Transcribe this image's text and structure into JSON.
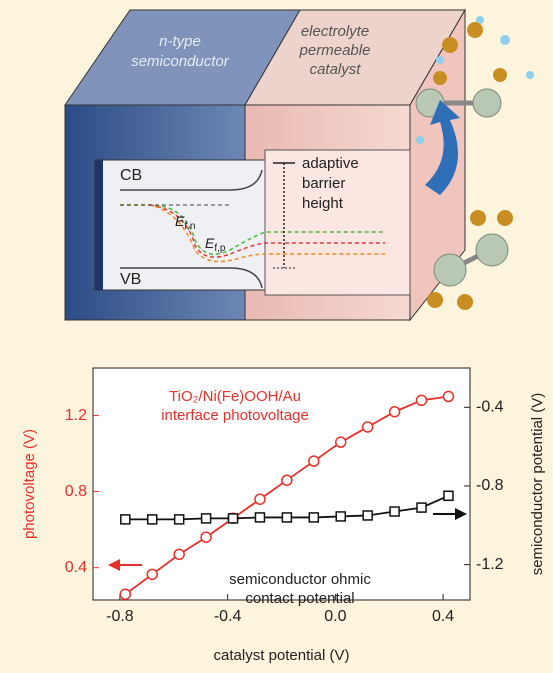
{
  "diagram": {
    "left_label": [
      "n-type",
      "semiconductor"
    ],
    "right_label": [
      "electrolyte",
      "permeable",
      "catalyst"
    ],
    "cb": "CB",
    "vb": "VB",
    "efn": {
      "symbol": "E",
      "sub": "f,n"
    },
    "efp": {
      "symbol": "E",
      "sub": "f,p"
    },
    "barrier": [
      "adaptive",
      "barrier",
      "height"
    ]
  },
  "chart_data": {
    "type": "line",
    "xlabel": "catalyst potential (V)",
    "ylabel": "photovoltage (V)",
    "y2label": "semiconductor potential (V)",
    "annotations": [
      [
        "TiO₂/Ni(Fe)OOH/Au",
        "interface photovoltage"
      ],
      [
        "semiconductor ohmic",
        "contact potential"
      ]
    ],
    "x": [
      -0.78,
      -0.68,
      -0.58,
      -0.48,
      -0.38,
      -0.28,
      -0.18,
      -0.08,
      0.02,
      0.12,
      0.22,
      0.32,
      0.42
    ],
    "series": [
      {
        "color": "#e8302a",
        "marker": "circle",
        "values": [
          0.26,
          0.365,
          0.47,
          0.56,
          0.66,
          0.76,
          0.86,
          0.96,
          1.06,
          1.14,
          1.22,
          1.28,
          1.3
        ]
      },
      {
        "color": "#111111",
        "marker": "square",
        "axis": "y2",
        "values": [
          -0.97,
          -0.97,
          -0.97,
          -0.965,
          -0.965,
          -0.96,
          -0.96,
          -0.96,
          -0.955,
          -0.95,
          -0.93,
          -0.91,
          -0.85
        ]
      }
    ],
    "xlim": [
      -0.9,
      0.5
    ],
    "xticks": [
      -0.8,
      -0.4,
      {
        "value": 0,
        "label": "0.0"
      },
      0.4
    ],
    "ylim": [
      0.23,
      1.45
    ],
    "yticks": [
      0.4,
      0.8,
      1.2
    ],
    "y2lim": [
      -1.38,
      -0.2
    ],
    "y2ticks": [
      -0.4,
      -0.8,
      -1.2
    ]
  }
}
